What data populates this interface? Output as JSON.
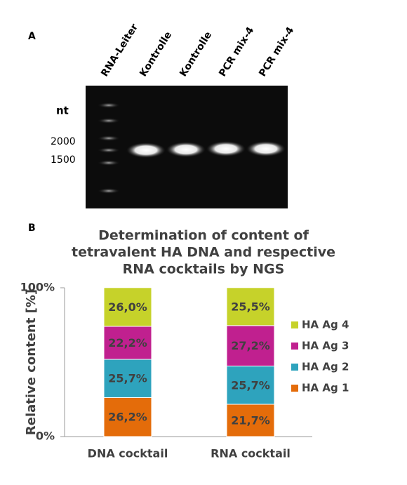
{
  "panel_a": {
    "label": "A",
    "lanes": [
      "RNA-Leiter",
      "Kontrolle",
      "Kontrolle",
      "PCR mix-4",
      "PCR mix-4"
    ],
    "unit": "nt",
    "markers": [
      2000,
      1500
    ]
  },
  "chart_data": {
    "type": "bar",
    "stacked": true,
    "panel_label": "B",
    "title": [
      "Determination of content of",
      "tetravalent HA DNA and respective",
      "RNA cocktails by NGS"
    ],
    "y_label": "Relative content [%]",
    "categories": [
      "DNA cocktail",
      "RNA cocktail"
    ],
    "series": [
      {
        "name": "HA Ag 1",
        "color": "#e46c0a",
        "values": [
          26.2,
          21.7
        ],
        "value_labels": [
          "26,2%",
          "21,7%"
        ]
      },
      {
        "name": "HA Ag 2",
        "color": "#2ea3bd",
        "values": [
          25.7,
          25.7
        ],
        "value_labels": [
          "25,7%",
          "25,7%"
        ]
      },
      {
        "name": "HA Ag 3",
        "color": "#c0208f",
        "values": [
          22.2,
          27.2
        ],
        "value_labels": [
          "22,2%",
          "27,2%"
        ]
      },
      {
        "name": "HA Ag 4",
        "color": "#c6d22a",
        "values": [
          26.0,
          25.5
        ],
        "value_labels": [
          "26,0%",
          "25,5%"
        ]
      }
    ],
    "ylim": [
      0,
      100
    ],
    "yticks": [
      {
        "value": 0,
        "label": "0%"
      },
      {
        "value": 100,
        "label": "100%"
      }
    ],
    "legend": "right"
  }
}
